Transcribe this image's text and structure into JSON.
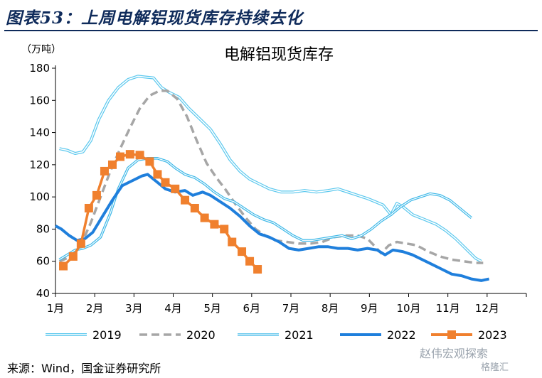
{
  "figure_title": "图表53：上周电解铝现货库存持续去化",
  "source": "来源：Wind，国金证券研究所",
  "watermark": "赵伟宏观探索",
  "watermark2": "格隆汇",
  "chart_data": {
    "type": "line",
    "title": "电解铝现货库存",
    "ylabel": "（万吨）",
    "ylim": [
      40,
      180
    ],
    "yticks": [
      40,
      60,
      80,
      100,
      120,
      140,
      160,
      180
    ],
    "xlim": [
      1,
      13
    ],
    "xticks": [
      1,
      2,
      3,
      4,
      5,
      6,
      7,
      8,
      9,
      10,
      11,
      12
    ],
    "xtick_labels": [
      "1月",
      "2月",
      "3月",
      "4月",
      "5月",
      "6月",
      "7月",
      "8月",
      "9月",
      "10月",
      "11月",
      "12月"
    ],
    "grid": false,
    "legend_position": "bottom",
    "series": [
      {
        "name": "2019",
        "color": "#5bc8ee",
        "style": "double-light",
        "points": [
          [
            1.1,
            130
          ],
          [
            1.3,
            129
          ],
          [
            1.5,
            127
          ],
          [
            1.7,
            128
          ],
          [
            1.9,
            135
          ],
          [
            2.1,
            148
          ],
          [
            2.35,
            160
          ],
          [
            2.6,
            168
          ],
          [
            2.85,
            173
          ],
          [
            3.1,
            175
          ],
          [
            3.3,
            174.5
          ],
          [
            3.5,
            174
          ],
          [
            3.7,
            168
          ],
          [
            3.9,
            165
          ],
          [
            4.15,
            162
          ],
          [
            4.4,
            155
          ],
          [
            4.7,
            148
          ],
          [
            4.95,
            142
          ],
          [
            5.2,
            133
          ],
          [
            5.45,
            123
          ],
          [
            5.7,
            116
          ],
          [
            5.95,
            111
          ],
          [
            6.2,
            108
          ],
          [
            6.45,
            105
          ],
          [
            6.75,
            103
          ],
          [
            7.05,
            103
          ],
          [
            7.35,
            104
          ],
          [
            7.65,
            103
          ],
          [
            7.95,
            104
          ],
          [
            8.2,
            105
          ],
          [
            8.45,
            103
          ],
          [
            8.7,
            101
          ],
          [
            8.95,
            99
          ],
          [
            9.15,
            97
          ],
          [
            9.35,
            95
          ],
          [
            9.55,
            89
          ],
          [
            9.7,
            96
          ],
          [
            9.85,
            94
          ],
          [
            10.1,
            89
          ],
          [
            10.4,
            86
          ],
          [
            10.7,
            83
          ],
          [
            10.95,
            79
          ],
          [
            11.2,
            74
          ],
          [
            11.45,
            68
          ],
          [
            11.7,
            62
          ],
          [
            11.85,
            60
          ]
        ]
      },
      {
        "name": "2020",
        "color": "#a6a6a6",
        "style": "dashed",
        "points": [
          [
            1.1,
            60
          ],
          [
            1.3,
            62
          ],
          [
            1.5,
            66
          ],
          [
            1.7,
            73
          ],
          [
            1.9,
            84
          ],
          [
            2.15,
            100
          ],
          [
            2.4,
            116
          ],
          [
            2.65,
            130
          ],
          [
            2.9,
            143
          ],
          [
            3.15,
            155
          ],
          [
            3.4,
            163
          ],
          [
            3.65,
            166
          ],
          [
            3.85,
            166
          ],
          [
            4.1,
            161
          ],
          [
            4.35,
            150
          ],
          [
            4.6,
            135
          ],
          [
            4.85,
            121
          ],
          [
            5.1,
            112
          ],
          [
            5.35,
            104
          ],
          [
            5.6,
            95
          ],
          [
            5.85,
            87
          ],
          [
            6.1,
            80
          ],
          [
            6.35,
            76
          ],
          [
            6.6,
            73
          ],
          [
            6.9,
            72
          ],
          [
            7.2,
            71
          ],
          [
            7.5,
            71
          ],
          [
            7.8,
            72
          ],
          [
            8.1,
            75
          ],
          [
            8.4,
            76
          ],
          [
            8.7,
            76
          ],
          [
            8.95,
            74
          ],
          [
            9.15,
            69
          ],
          [
            9.3,
            65
          ],
          [
            9.5,
            70
          ],
          [
            9.7,
            72
          ],
          [
            9.95,
            71
          ],
          [
            10.2,
            70
          ],
          [
            10.5,
            66
          ],
          [
            10.8,
            63
          ],
          [
            11.1,
            61
          ],
          [
            11.4,
            60
          ],
          [
            11.7,
            59
          ],
          [
            11.9,
            59
          ]
        ]
      },
      {
        "name": "2021",
        "color": "#3db8e8",
        "style": "double",
        "points": [
          [
            1.1,
            61
          ],
          [
            1.3,
            64
          ],
          [
            1.5,
            67
          ],
          [
            1.7,
            68
          ],
          [
            1.9,
            70
          ],
          [
            2.15,
            75
          ],
          [
            2.4,
            90
          ],
          [
            2.6,
            105
          ],
          [
            2.85,
            118
          ],
          [
            3.1,
            123
          ],
          [
            3.35,
            124
          ],
          [
            3.6,
            124
          ],
          [
            3.85,
            122
          ],
          [
            4.05,
            118
          ],
          [
            4.3,
            114
          ],
          [
            4.55,
            112
          ],
          [
            4.8,
            108
          ],
          [
            5.05,
            103
          ],
          [
            5.3,
            99
          ],
          [
            5.55,
            97
          ],
          [
            5.8,
            93
          ],
          [
            6.05,
            89
          ],
          [
            6.3,
            86
          ],
          [
            6.55,
            84
          ],
          [
            6.8,
            80
          ],
          [
            7.05,
            76
          ],
          [
            7.3,
            73
          ],
          [
            7.55,
            73
          ],
          [
            7.8,
            74
          ],
          [
            8.05,
            75
          ],
          [
            8.3,
            76
          ],
          [
            8.55,
            74
          ],
          [
            8.8,
            76
          ],
          [
            9.05,
            80
          ],
          [
            9.3,
            85
          ],
          [
            9.55,
            89
          ],
          [
            9.8,
            94
          ],
          [
            10.05,
            98
          ],
          [
            10.3,
            100
          ],
          [
            10.55,
            102
          ],
          [
            10.8,
            101
          ],
          [
            11.05,
            98
          ],
          [
            11.3,
            93
          ],
          [
            11.5,
            89
          ],
          [
            11.6,
            87
          ]
        ]
      },
      {
        "name": "2022",
        "color": "#1f7fdc",
        "style": "thick",
        "points": [
          [
            1.0,
            82
          ],
          [
            1.15,
            80
          ],
          [
            1.35,
            76
          ],
          [
            1.55,
            73
          ],
          [
            1.75,
            74
          ],
          [
            1.95,
            78
          ],
          [
            2.2,
            88
          ],
          [
            2.45,
            98
          ],
          [
            2.7,
            107
          ],
          [
            2.95,
            110
          ],
          [
            3.2,
            113
          ],
          [
            3.35,
            114
          ],
          [
            3.55,
            110
          ],
          [
            3.8,
            105
          ],
          [
            4.05,
            103
          ],
          [
            4.3,
            104
          ],
          [
            4.5,
            101
          ],
          [
            4.75,
            103
          ],
          [
            4.95,
            101
          ],
          [
            5.2,
            97
          ],
          [
            5.45,
            93
          ],
          [
            5.7,
            88
          ],
          [
            5.95,
            82
          ],
          [
            6.2,
            77
          ],
          [
            6.45,
            75
          ],
          [
            6.7,
            72
          ],
          [
            6.95,
            68
          ],
          [
            7.2,
            67
          ],
          [
            7.45,
            68
          ],
          [
            7.7,
            69
          ],
          [
            7.95,
            69
          ],
          [
            8.2,
            68
          ],
          [
            8.45,
            68
          ],
          [
            8.7,
            67
          ],
          [
            8.95,
            68
          ],
          [
            9.2,
            67
          ],
          [
            9.4,
            64
          ],
          [
            9.6,
            67
          ],
          [
            9.85,
            66
          ],
          [
            10.1,
            64
          ],
          [
            10.35,
            61
          ],
          [
            10.6,
            58
          ],
          [
            10.85,
            55
          ],
          [
            11.1,
            52
          ],
          [
            11.35,
            51
          ],
          [
            11.6,
            49
          ],
          [
            11.85,
            48
          ],
          [
            12.05,
            49
          ]
        ]
      },
      {
        "name": "2023",
        "color": "#f0802e",
        "style": "square-markers",
        "points": [
          [
            1.2,
            57
          ],
          [
            1.45,
            63
          ],
          [
            1.65,
            71
          ],
          [
            1.85,
            93
          ],
          [
            2.05,
            101
          ],
          [
            2.25,
            116
          ],
          [
            2.45,
            120
          ],
          [
            2.65,
            125
          ],
          [
            2.9,
            126.5
          ],
          [
            3.15,
            126
          ],
          [
            3.4,
            122
          ],
          [
            3.6,
            114
          ],
          [
            3.8,
            109
          ],
          [
            4.05,
            105
          ],
          [
            4.3,
            98
          ],
          [
            4.55,
            93
          ],
          [
            4.8,
            87
          ],
          [
            5.05,
            83
          ],
          [
            5.3,
            80
          ],
          [
            5.5,
            72
          ],
          [
            5.75,
            66
          ],
          [
            5.95,
            60
          ],
          [
            6.15,
            55
          ]
        ]
      }
    ]
  }
}
